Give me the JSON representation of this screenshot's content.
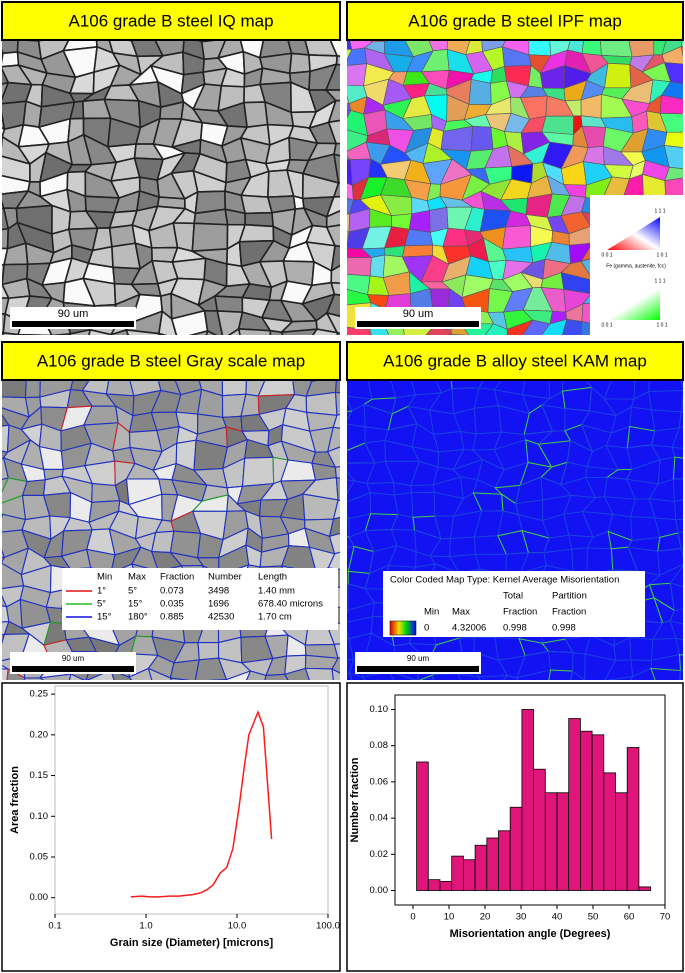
{
  "panels": [
    {
      "title": "A106 grade B  steel IQ map",
      "scale_bar": "90 um"
    },
    {
      "title": "A106 grade B  steel IPF map",
      "scale_bar": "90 um",
      "legend": {
        "top_labels": [
          "1 1 1",
          "1 1 1"
        ],
        "bottom_labels": [
          "0 0 1",
          "1 0 1"
        ],
        "caption": "Fe (gamma, austenite, fcc)"
      }
    },
    {
      "title": "A106 grade B  steel Gray scale map",
      "scale_bar": "90 um",
      "legend": {
        "header": [
          "Min",
          "Max",
          "Fraction",
          "Number",
          "Length"
        ],
        "rows": [
          [
            "1°",
            "5°",
            "0.073",
            "3498",
            "1.40 mm"
          ],
          [
            "5°",
            "15°",
            "0.035",
            "1696",
            "678.40 microns"
          ],
          [
            "15°",
            "180°",
            "0.885",
            "42530",
            "1.70 cm"
          ]
        ],
        "colors": [
          "#e01010",
          "#20c020",
          "#1010e0"
        ]
      }
    },
    {
      "title": "A106 grade B alloy steel KAM map",
      "scale_bar": "90 um",
      "legend": {
        "title": "Color Coded Map Type: Kernel Average Misorientation",
        "header_top": [
          "Total",
          "Partition"
        ],
        "header_bottom": [
          "Min",
          "Max",
          "Fraction",
          "Fraction"
        ],
        "values": [
          "0",
          "4.32006",
          "0.998",
          "0.998"
        ]
      }
    }
  ],
  "chart_data": [
    {
      "type": "line",
      "xlabel": "Grain size (Diameter) [microns]",
      "ylabel": "Area fraction",
      "log_x": true,
      "color": "#ff1a1a",
      "x": [
        0.68,
        0.9,
        1.1,
        1.4,
        1.8,
        2.3,
        2.8,
        3.3,
        4,
        4.7,
        5.5,
        6.5,
        7.7,
        9,
        10.5,
        12,
        13.5,
        17,
        19.5,
        24
      ],
      "values": [
        0.001,
        0.002,
        0.001,
        0.001,
        0.002,
        0.002,
        0.003,
        0.004,
        0.006,
        0.01,
        0.016,
        0.03,
        0.037,
        0.06,
        0.11,
        0.16,
        0.2,
        0.228,
        0.21,
        0.072
      ],
      "xlim": [
        0.1,
        100
      ],
      "ylim": [
        -0.02,
        0.26
      ],
      "xticks": [
        0.1,
        {
          "value": 1,
          "label": "1.0"
        },
        {
          "value": 10,
          "label": "10.0"
        },
        {
          "value": 100,
          "label": "100.0"
        }
      ],
      "yticks": [
        {
          "value": 0,
          "label": "0.00"
        },
        {
          "value": 0.05,
          "label": "0.05"
        },
        {
          "value": 0.1,
          "label": "0.10"
        },
        {
          "value": 0.15,
          "label": "0.15"
        },
        {
          "value": 0.2,
          "label": "0.20"
        },
        {
          "value": 0.25,
          "label": "0.25"
        }
      ]
    },
    {
      "type": "histogram",
      "xlabel": "Misorientation angle (Degrees)",
      "ylabel": "Number fraction",
      "color": "#e0157a",
      "bins": [
        1,
        4.25,
        7.5,
        10.75,
        14,
        17.25,
        20.5,
        23.75,
        27,
        30.25,
        33.5,
        36.75,
        40,
        43.25,
        46.5,
        49.75,
        53,
        56.25,
        59.5,
        62.75,
        66
      ],
      "values": [
        0.071,
        0.006,
        0.005,
        0.019,
        0.017,
        0.025,
        0.029,
        0.033,
        0.046,
        0.1,
        0.067,
        0.054,
        0.054,
        0.095,
        0.088,
        0.086,
        0.065,
        0.054,
        0.079,
        0.002
      ],
      "xlim": [
        -5,
        70
      ],
      "ylim": [
        -0.008,
        0.108
      ],
      "xticks": [
        0,
        10,
        20,
        30,
        40,
        50,
        60,
        70
      ],
      "yticks": [
        {
          "value": 0,
          "label": "0.00"
        },
        {
          "value": 0.02,
          "label": "0.02"
        },
        {
          "value": 0.04,
          "label": "0.04"
        },
        {
          "value": 0.06,
          "label": "0.06"
        },
        {
          "value": 0.08,
          "label": "0.08"
        },
        {
          "value": 0.1,
          "label": "0.10"
        }
      ]
    }
  ]
}
